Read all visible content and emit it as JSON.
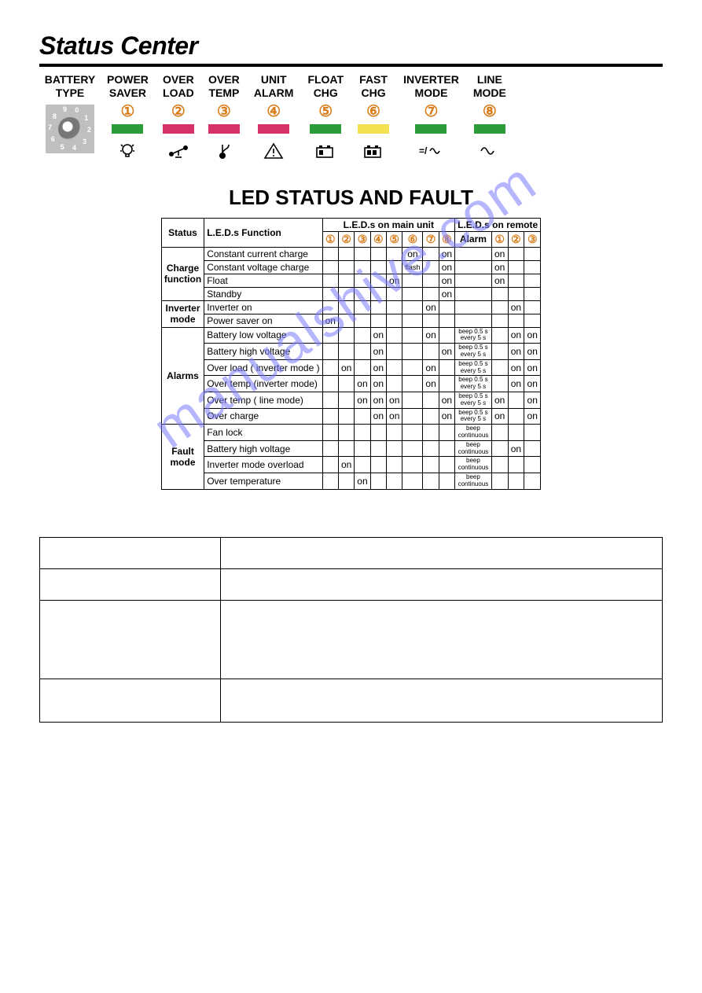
{
  "title": "Status Center",
  "battery_type_label1": "BATTERY",
  "battery_type_label2": "TYPE",
  "dial_numbers": [
    "8",
    "9",
    "0",
    "1",
    "2",
    "3",
    "4",
    "5",
    "6",
    "7"
  ],
  "indicators": [
    {
      "l1": "POWER",
      "l2": "SAVER",
      "num": "①",
      "color": "#2e9b3a",
      "icon": "bulb"
    },
    {
      "l1": "OVER",
      "l2": "LOAD",
      "num": "②",
      "color": "#d6336c",
      "icon": "balance"
    },
    {
      "l1": "OVER",
      "l2": "TEMP",
      "num": "③",
      "color": "#d6336c",
      "icon": "thermo"
    },
    {
      "l1": "UNIT",
      "l2": "ALARM",
      "num": "④",
      "color": "#d6336c",
      "icon": "warn"
    },
    {
      "l1": "FLOAT",
      "l2": "CHG",
      "num": "⑤",
      "color": "#2e9b3a",
      "icon": "bat1"
    },
    {
      "l1": "FAST",
      "l2": "CHG",
      "num": "⑥",
      "color": "#f5e050",
      "icon": "bat2"
    },
    {
      "l1": "INVERTER",
      "l2": "MODE",
      "num": "⑦",
      "color": "#2e9b3a",
      "icon": "dc"
    },
    {
      "l1": "LINE",
      "l2": "MODE",
      "num": "⑧",
      "color": "#2e9b3a",
      "icon": "ac"
    }
  ],
  "h2": "LED STATUS AND FAULT",
  "col_status": "Status",
  "col_func": "L.E.D.s Function",
  "col_main": "L.E.D.s on main unit",
  "col_remote": "L.E.D.s on remote",
  "col_alarm": "Alarm",
  "nums_main": [
    "①",
    "②",
    "③",
    "④",
    "⑤",
    "⑥",
    "⑦",
    "⑧"
  ],
  "nums_remote": [
    "①",
    "②",
    "③"
  ],
  "groups": [
    {
      "name": "Charge function",
      "rows": [
        {
          "f": "Constant current charge",
          "m": [
            "",
            "",
            "",
            "",
            "",
            "on",
            "",
            "on"
          ],
          "a": "",
          "r": [
            "on",
            "",
            ""
          ]
        },
        {
          "f": "Constant voltage charge",
          "m": [
            "",
            "",
            "",
            "",
            "",
            "flash",
            "",
            "on"
          ],
          "a": "",
          "r": [
            "on",
            "",
            ""
          ]
        },
        {
          "f": "Float",
          "m": [
            "",
            "",
            "",
            "",
            "on",
            "",
            "",
            "on"
          ],
          "a": "",
          "r": [
            "on",
            "",
            ""
          ]
        },
        {
          "f": "Standby",
          "m": [
            "",
            "",
            "",
            "",
            "",
            "",
            "",
            "on"
          ],
          "a": "",
          "r": [
            "",
            "",
            ""
          ]
        }
      ]
    },
    {
      "name": "Inverter mode",
      "rows": [
        {
          "f": "Inverter on",
          "m": [
            "",
            "",
            "",
            "",
            "",
            "",
            "on",
            ""
          ],
          "a": "",
          "r": [
            "",
            "on",
            ""
          ]
        },
        {
          "f": "Power saver on",
          "m": [
            "on",
            "",
            "",
            "",
            "",
            "",
            "",
            ""
          ],
          "a": "",
          "r": [
            "",
            "",
            ""
          ]
        }
      ]
    },
    {
      "name": "Alarms",
      "rows": [
        {
          "f": "Battery low voltage",
          "m": [
            "",
            "",
            "",
            "on",
            "",
            "",
            "on",
            ""
          ],
          "a": "beep 0.5 s every 5 s",
          "r": [
            "",
            "on",
            "on"
          ]
        },
        {
          "f": "Battery high voltage",
          "m": [
            "",
            "",
            "",
            "on",
            "",
            "",
            "",
            "on"
          ],
          "a": "beep 0.5 s every 5 s",
          "r": [
            "",
            "on",
            "on"
          ]
        },
        {
          "f": "Over load ( inverter mode )",
          "m": [
            "",
            "on",
            "",
            "on",
            "",
            "",
            "on",
            ""
          ],
          "a": "beep 0.5 s every 5 s",
          "r": [
            "",
            "on",
            "on"
          ]
        },
        {
          "f": "Over temp (inverter mode)",
          "m": [
            "",
            "",
            "on",
            "on",
            "",
            "",
            "on",
            ""
          ],
          "a": "beep 0.5 s every 5 s",
          "r": [
            "",
            "on",
            "on"
          ]
        },
        {
          "f": "Over temp ( line mode)",
          "m": [
            "",
            "",
            "on",
            "on",
            "on",
            "",
            "",
            "on"
          ],
          "a": "beep 0.5 s every 5 s",
          "r": [
            "on",
            "",
            "on"
          ]
        },
        {
          "f": "Over charge",
          "m": [
            "",
            "",
            "",
            "on",
            "on",
            "",
            "",
            "on"
          ],
          "a": "beep 0.5 s every 5 s",
          "r": [
            "on",
            "",
            "on"
          ]
        }
      ]
    },
    {
      "name": "Fault mode",
      "rows": [
        {
          "f": "Fan lock",
          "m": [
            "",
            "",
            "",
            "",
            "",
            "",
            "",
            ""
          ],
          "a": "beep continuous",
          "r": [
            "",
            "",
            ""
          ]
        },
        {
          "f": "Battery high voltage",
          "m": [
            "",
            "",
            "",
            "",
            "",
            "",
            "",
            ""
          ],
          "a": "beep continuous",
          "r": [
            "",
            "on",
            ""
          ]
        },
        {
          "f": "Inverter mode overload",
          "m": [
            "",
            "on",
            "",
            "",
            "",
            "",
            "",
            ""
          ],
          "a": "beep continuous",
          "r": [
            "",
            "",
            ""
          ]
        },
        {
          "f": "Over temperature",
          "m": [
            "",
            "",
            "on",
            "",
            "",
            "",
            "",
            ""
          ],
          "a": "beep continuous",
          "r": [
            "",
            "",
            ""
          ]
        }
      ]
    }
  ],
  "empty_rows": [
    40,
    40,
    100,
    55
  ],
  "empty_col1_width": 230,
  "watermark": "manualshive.com",
  "colors": {
    "accent": "#d97c1a",
    "green": "#2e9b3a",
    "pink": "#d6336c",
    "yellow": "#f5e050",
    "watermark": "#7b7bff"
  }
}
